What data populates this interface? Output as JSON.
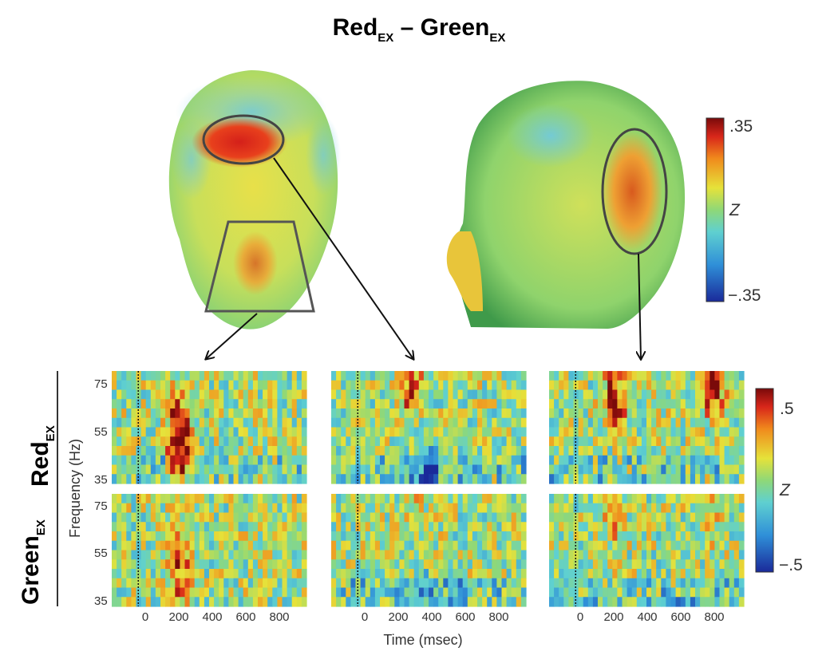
{
  "title": {
    "main_a": "Red",
    "sub_a": "EX",
    "dash": " – ",
    "main_b": "Green",
    "sub_b": "EX"
  },
  "topomap_colorbar": {
    "max_label": ".35",
    "mid_label": "Z",
    "min_label": "−.35"
  },
  "tf_colorbar": {
    "max_label": ".5",
    "mid_label": "Z",
    "min_label": "−.5"
  },
  "rows": [
    {
      "label": "Red",
      "sub": "EX"
    },
    {
      "label": "Green",
      "sub": "EX"
    }
  ],
  "y_axis": {
    "label": "Frequency (Hz)",
    "ticks": [
      "75",
      "55",
      "35"
    ]
  },
  "x_axis": {
    "label": "Time (msec)",
    "ticks": [
      "0",
      "200",
      "400",
      "600",
      "800"
    ]
  },
  "colors": {
    "hot": "#8b0000",
    "cold": "#1f2f9c",
    "neutral": "#7fd38a"
  },
  "panels": [
    {
      "region": "frontal",
      "hotspots": [
        {
          "t": 230,
          "f": 55,
          "z": 0.5
        },
        {
          "t": 230,
          "f": 38,
          "z": 0.45
        }
      ]
    },
    {
      "region": "occipital-left",
      "hotspots": [
        {
          "t": 300,
          "f": 70,
          "z": 0.35
        },
        {
          "t": 400,
          "f": 36,
          "z": -0.45
        }
      ]
    },
    {
      "region": "occipital-right",
      "hotspots": [
        {
          "t": 220,
          "f": 65,
          "z": 0.45
        },
        {
          "t": 780,
          "f": 70,
          "z": 0.45
        }
      ]
    }
  ]
}
